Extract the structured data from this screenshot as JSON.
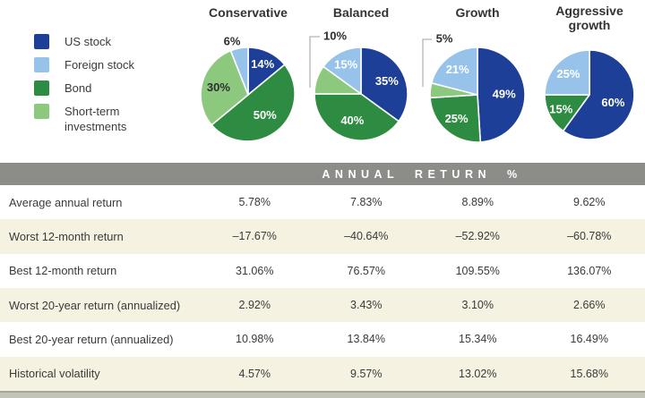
{
  "colors": {
    "us_stock": "#1e3f97",
    "foreign_stock": "#97c3ea",
    "bond": "#2e8b42",
    "short_term": "#8cc97e",
    "table_header_bg": "#8c8d89",
    "zebra_row_bg": "#f5f2e2",
    "text": "#3a3a3a"
  },
  "legend": {
    "items": [
      {
        "label": "US stock",
        "color": "#1e3f97"
      },
      {
        "label": "Foreign stock",
        "color": "#97c3ea"
      },
      {
        "label": "Bond",
        "color": "#2e8b42"
      },
      {
        "label": "Short-term investments",
        "color": "#8cc97e"
      }
    ]
  },
  "chart_data": [
    {
      "type": "pie",
      "title": "Conservative",
      "slices": [
        {
          "label": "US stock",
          "value": 14,
          "display": "14%",
          "color": "#1e3f97",
          "label_color": "#ffffff",
          "placement": "inside"
        },
        {
          "label": "Bond",
          "value": 50,
          "display": "50%",
          "color": "#2e8b42",
          "label_color": "#ffffff",
          "placement": "inside"
        },
        {
          "label": "Short-term investments",
          "value": 30,
          "display": "30%",
          "color": "#8cc97e",
          "label_color": "#2e2e2e",
          "placement": "inside"
        },
        {
          "label": "Foreign stock",
          "value": 6,
          "display": "6%",
          "color": "#97c3ea",
          "label_color": "#2f2f2f",
          "placement": "callout"
        }
      ]
    },
    {
      "type": "pie",
      "title": "Balanced",
      "slices": [
        {
          "label": "US stock",
          "value": 35,
          "display": "35%",
          "color": "#1e3f97",
          "label_color": "#ffffff",
          "placement": "inside"
        },
        {
          "label": "Bond",
          "value": 40,
          "display": "40%",
          "color": "#2e8b42",
          "label_color": "#ffffff",
          "placement": "inside"
        },
        {
          "label": "Short-term investments",
          "value": 10,
          "display": "10%",
          "color": "#8cc97e",
          "label_color": "#2f2f2f",
          "placement": "callout"
        },
        {
          "label": "Foreign stock",
          "value": 15,
          "display": "15%",
          "color": "#97c3ea",
          "label_color": "#ffffff",
          "placement": "inside"
        }
      ]
    },
    {
      "type": "pie",
      "title": "Growth",
      "slices": [
        {
          "label": "US stock",
          "value": 49,
          "display": "49%",
          "color": "#1e3f97",
          "label_color": "#ffffff",
          "placement": "inside"
        },
        {
          "label": "Bond",
          "value": 25,
          "display": "25%",
          "color": "#2e8b42",
          "label_color": "#ffffff",
          "placement": "inside"
        },
        {
          "label": "Short-term investments",
          "value": 5,
          "display": "5%",
          "color": "#8cc97e",
          "label_color": "#2f2f2f",
          "placement": "callout"
        },
        {
          "label": "Foreign stock",
          "value": 21,
          "display": "21%",
          "color": "#97c3ea",
          "label_color": "#ffffff",
          "placement": "inside"
        }
      ]
    },
    {
      "type": "pie",
      "title": "Aggressive growth",
      "slices": [
        {
          "label": "US stock",
          "value": 60,
          "display": "60%",
          "color": "#1e3f97",
          "label_color": "#ffffff",
          "placement": "inside"
        },
        {
          "label": "Bond",
          "value": 15,
          "display": "15%",
          "color": "#2e8b42",
          "label_color": "#ffffff",
          "placement": "inside"
        },
        {
          "label": "Foreign stock",
          "value": 25,
          "display": "25%",
          "color": "#97c3ea",
          "label_color": "#ffffff",
          "placement": "inside"
        }
      ]
    }
  ],
  "table": {
    "header_label": "ANNUAL RETURN %",
    "rows": [
      {
        "label": "Average annual return",
        "values": [
          "5.78%",
          "7.83%",
          "8.89%",
          "9.62%"
        ]
      },
      {
        "label": "Worst 12-month return",
        "values": [
          "–17.67%",
          "–40.64%",
          "–52.92%",
          "–60.78%"
        ]
      },
      {
        "label": "Best 12-month return",
        "values": [
          "31.06%",
          "76.57%",
          "109.55%",
          "136.07%"
        ]
      },
      {
        "label": "Worst 20-year return (annualized)",
        "values": [
          "2.92%",
          "3.43%",
          "3.10%",
          "2.66%"
        ]
      },
      {
        "label": "Best 20-year return (annualized)",
        "values": [
          "10.98%",
          "13.84%",
          "15.34%",
          "16.49%"
        ]
      },
      {
        "label": "Historical volatility",
        "values": [
          "4.57%",
          "9.57%",
          "13.02%",
          "15.68%"
        ]
      }
    ]
  }
}
